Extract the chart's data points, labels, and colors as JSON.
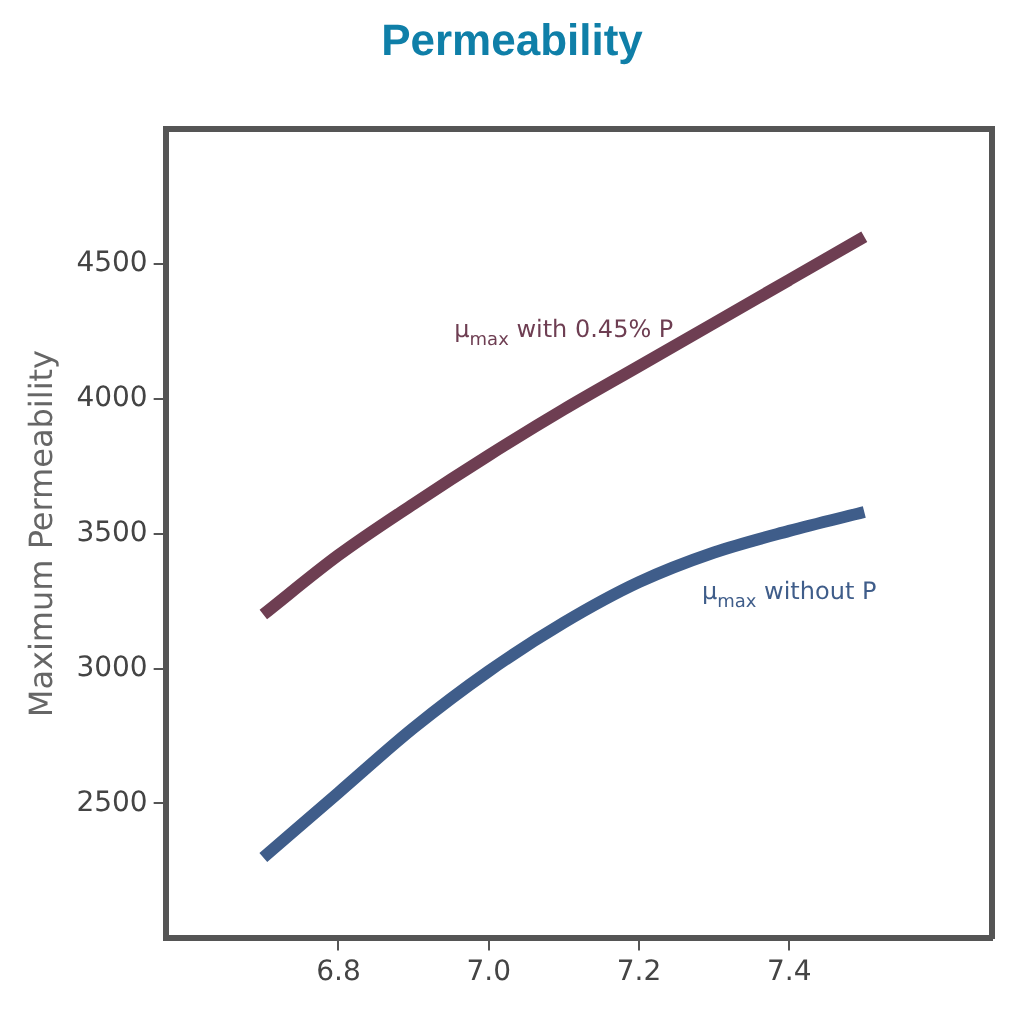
{
  "chart_data": {
    "type": "line",
    "title": "Permeability",
    "ylabel": "Maximum Permeability",
    "xlim": [
      6.57,
      7.67
    ],
    "ylim": [
      2000,
      5000
    ],
    "xticks": [
      {
        "value": 6.8,
        "label": "6.8"
      },
      {
        "value": 7.0,
        "label": "7.0"
      },
      {
        "value": 7.2,
        "label": "7.2"
      },
      {
        "value": 7.4,
        "label": "7.4"
      }
    ],
    "yticks": [
      2500,
      3000,
      3500,
      4000,
      4500
    ],
    "x": [
      6.7,
      6.8,
      6.9,
      7.0,
      7.1,
      7.2,
      7.3,
      7.4,
      7.5
    ],
    "series": [
      {
        "name": "μ$_{max}$ with 0.45% P",
        "color": "#6e3e52",
        "values": [
          3200,
          3420,
          3610,
          3790,
          3960,
          4120,
          4280,
          4440,
          4600
        ]
      },
      {
        "name": "μ$_{max}$ without P",
        "color": "#3f5d8a",
        "values": [
          2300,
          2540,
          2780,
          2990,
          3170,
          3320,
          3430,
          3510,
          3580
        ]
      }
    ],
    "grid": false,
    "legend": false,
    "marker": "none",
    "line_style": "solid"
  }
}
